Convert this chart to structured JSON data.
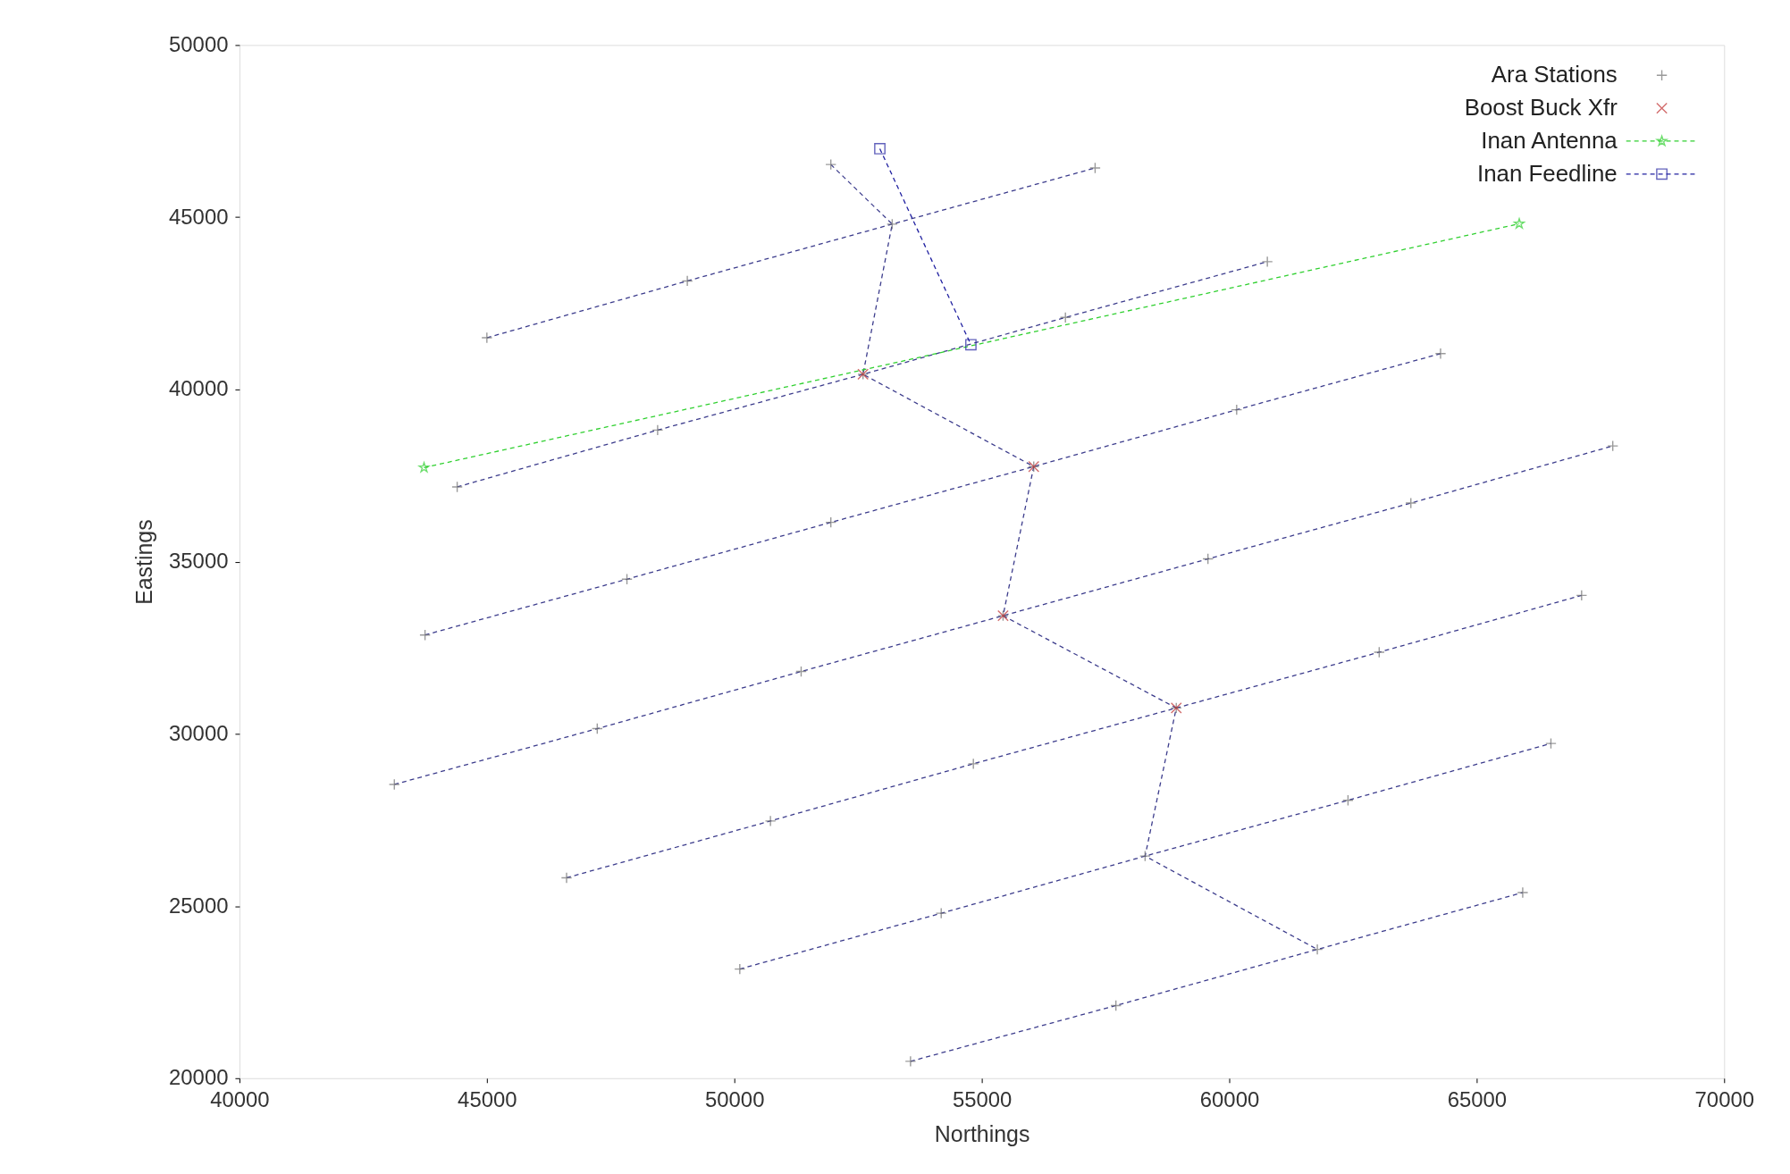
{
  "chart_data": {
    "type": "scatter",
    "xlabel": "Northings",
    "ylabel": "Eastings",
    "xlim": [
      40000,
      70000
    ],
    "ylim": [
      20000,
      50000
    ],
    "xticks": [
      40000,
      45000,
      50000,
      55000,
      60000,
      65000,
      70000
    ],
    "yticks": [
      20000,
      25000,
      30000,
      35000,
      40000,
      45000,
      50000
    ],
    "grid": false,
    "legend": "top right",
    "series": [
      {
        "type": "line",
        "color": "#3c3c8c",
        "line_style": "dashed",
        "marker": "none",
        "x": [
          45000,
          49050,
          53190,
          57290,
          null,
          44400,
          48450,
          52600,
          56690,
          60770,
          null,
          43750,
          47830,
          51950,
          56050,
          60150,
          64270,
          null,
          43130,
          47230,
          51350,
          55430,
          59570,
          63670,
          67750,
          null,
          46610,
          50730,
          54830,
          58930,
          63030,
          67120,
          null,
          50110,
          54180,
          58300,
          62400,
          66500,
          null,
          53560,
          57710,
          61780,
          65930,
          null,
          51950,
          53190,
          52600,
          56050,
          55430,
          58930,
          58300,
          61780
        ],
        "values": [
          41500,
          43150,
          44800,
          46430,
          null,
          37170,
          38820,
          40440,
          42090,
          43710,
          null,
          32870,
          34490,
          36140,
          37760,
          39410,
          41040,
          null,
          28530,
          30150,
          31810,
          33430,
          35080,
          36700,
          38360,
          null,
          25820,
          27470,
          29130,
          30750,
          32370,
          34020,
          null,
          23170,
          24790,
          26450,
          28070,
          29720,
          null,
          20490,
          22110,
          23740,
          25390,
          null,
          46530,
          44800,
          40440,
          37760,
          33430,
          30750,
          26450,
          23740
        ]
      },
      {
        "name": "Ara Stations",
        "color": "#707070",
        "marker": "cross",
        "x": [
          51950,
          45000,
          49050,
          53190,
          57290,
          44400,
          48450,
          52600,
          56690,
          60770,
          43750,
          47830,
          51950,
          56050,
          60150,
          64270,
          43130,
          47230,
          51350,
          55430,
          59570,
          63670,
          67750,
          46610,
          50730,
          54830,
          58930,
          63030,
          67120,
          50110,
          54180,
          58300,
          62400,
          66500,
          53560,
          57710,
          61780,
          65930
        ],
        "values": [
          46530,
          41500,
          43150,
          44800,
          46430,
          37170,
          38820,
          40440,
          42090,
          43710,
          32870,
          34490,
          36140,
          37760,
          39410,
          41040,
          28530,
          30150,
          31810,
          33430,
          35080,
          36700,
          38360,
          25820,
          27470,
          29130,
          30750,
          32370,
          34020,
          23170,
          24790,
          26450,
          28070,
          29720,
          20490,
          22110,
          23740,
          25390
        ]
      },
      {
        "name": "Boost Buck Xfr",
        "color": "#c03030",
        "marker": "x",
        "x": [
          52600,
          56050,
          55430,
          58930
        ],
        "values": [
          40440,
          37760,
          33430,
          30750
        ]
      },
      {
        "type": "line",
        "name": "Inan Antenna",
        "color": "#30d030",
        "marker": "star",
        "line_style": "dashed",
        "x": [
          43730,
          65860
        ],
        "values": [
          37730,
          44810
        ]
      },
      {
        "type": "line",
        "name": "Inan Feedline",
        "color": "#2020a0",
        "marker": "square",
        "line_style": "dashed",
        "x": [
          52940,
          54780
        ],
        "values": [
          46990,
          41300
        ]
      }
    ]
  }
}
